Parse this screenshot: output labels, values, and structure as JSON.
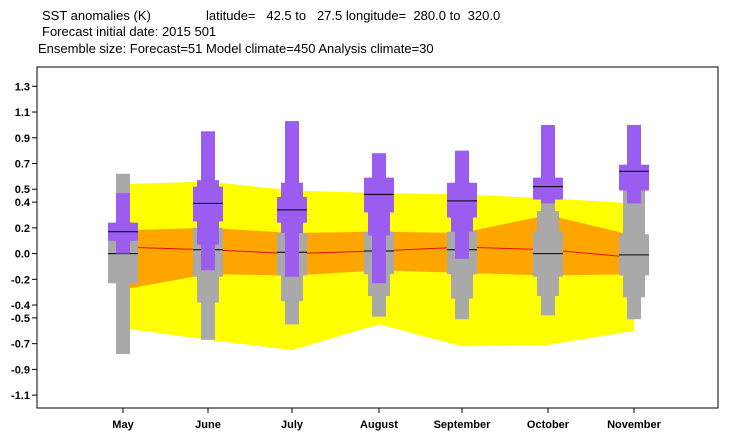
{
  "header": {
    "line1_title": "SST anomalies (K)",
    "line1_coords": "latitude=   42.5 to   27.5 longitude=  280.0 to  320.0",
    "line2": "Forecast initial date: 2015 501",
    "line3": "Ensemble size: Forecast=51 Model climate=450 Analysis climate=30"
  },
  "chart_data": {
    "type": "box",
    "ylim": [
      -1.2,
      1.45
    ],
    "yticks": [
      {
        "v": 1.3,
        "label": "1.3"
      },
      {
        "v": 1.1,
        "label": "1.1"
      },
      {
        "v": 0.9,
        "label": "0.9"
      },
      {
        "v": 0.7,
        "label": "0.7"
      },
      {
        "v": 0.5,
        "label": "0.5"
      },
      {
        "v": 0.4,
        "label": "0.4"
      },
      {
        "v": 0.2,
        "label": "0.2"
      },
      {
        "v": 0.0,
        "label": "0.0"
      },
      {
        "v": -0.2,
        "label": "-0.2"
      },
      {
        "v": -0.4,
        "label": "-0.4"
      },
      {
        "v": -0.5,
        "label": "-0.5"
      },
      {
        "v": -0.7,
        "label": "-0.7"
      },
      {
        "v": -0.9,
        "label": "-0.9"
      },
      {
        "v": -1.1,
        "label": "-1.1"
      }
    ],
    "categories": [
      "May",
      "June",
      "July",
      "August",
      "September",
      "October",
      "November"
    ],
    "colors": {
      "climate_box": "#a9a9a9",
      "forecast_box": "#9b5cf0",
      "outer_band": "#ffff00",
      "inner_band": "#ffa500",
      "median_line": "#e01010"
    },
    "climate_bands": {
      "outer_upper": [
        0.54,
        0.56,
        0.49,
        0.47,
        0.46,
        0.43,
        0.39
      ],
      "outer_lower": [
        -0.58,
        -0.67,
        -0.75,
        -0.55,
        -0.72,
        -0.71,
        -0.6
      ],
      "inner_upper": [
        0.18,
        0.2,
        0.16,
        0.17,
        0.16,
        0.3,
        0.14
      ],
      "inner_lower": [
        -0.28,
        -0.16,
        -0.17,
        -0.13,
        -0.15,
        -0.17,
        -0.16
      ],
      "median": [
        0.05,
        0.03,
        0.0,
        0.02,
        0.05,
        0.03,
        -0.03
      ]
    },
    "model_climate": [
      {
        "min": -0.78,
        "p10": -0.23,
        "p25": -0.23,
        "median": 0.0,
        "p75": 0.24,
        "p90": 0.24,
        "max": 0.62
      },
      {
        "min": -0.67,
        "p10": -0.38,
        "p25": -0.18,
        "median": 0.03,
        "p75": 0.2,
        "p90": 0.57,
        "max": 0.57
      },
      {
        "min": -0.55,
        "p10": -0.37,
        "p25": -0.17,
        "median": 0.01,
        "p75": 0.16,
        "p90": 0.55,
        "max": 0.55
      },
      {
        "min": -0.49,
        "p10": -0.33,
        "p25": -0.16,
        "median": 0.02,
        "p75": 0.17,
        "p90": 0.32,
        "max": 0.46
      },
      {
        "min": -0.51,
        "p10": -0.35,
        "p25": -0.16,
        "median": 0.03,
        "p75": 0.17,
        "p90": 0.33,
        "max": 0.46
      },
      {
        "min": -0.48,
        "p10": -0.33,
        "p25": -0.18,
        "median": 0.0,
        "p75": 0.17,
        "p90": 0.33,
        "max": 0.46
      },
      {
        "min": -0.51,
        "p10": -0.34,
        "p25": -0.17,
        "median": -0.01,
        "p75": 0.15,
        "p90": 0.53,
        "max": 0.53
      }
    ],
    "forecast": [
      {
        "min": 0.0,
        "p10": 0.1,
        "p25": 0.1,
        "median": 0.17,
        "p75": 0.24,
        "p90": 0.24,
        "max": 0.47
      },
      {
        "min": -0.13,
        "p10": 0.07,
        "p25": 0.25,
        "median": 0.39,
        "p75": 0.52,
        "p90": 0.57,
        "max": 0.95
      },
      {
        "min": -0.18,
        "p10": 0.16,
        "p25": 0.24,
        "median": 0.34,
        "p75": 0.44,
        "p90": 0.55,
        "max": 1.03
      },
      {
        "min": -0.23,
        "p10": 0.14,
        "p25": 0.32,
        "median": 0.46,
        "p75": 0.59,
        "p90": 0.59,
        "max": 0.78
      },
      {
        "min": -0.04,
        "p10": 0.17,
        "p25": 0.28,
        "median": 0.41,
        "p75": 0.55,
        "p90": 0.55,
        "max": 0.8
      },
      {
        "min": 0.39,
        "p10": 0.42,
        "p25": 0.42,
        "median": 0.52,
        "p75": 0.59,
        "p90": 0.59,
        "max": 1.0
      },
      {
        "min": 0.39,
        "p10": 0.49,
        "p25": 0.49,
        "median": 0.64,
        "p75": 0.69,
        "p90": 0.69,
        "max": 1.0
      }
    ]
  }
}
